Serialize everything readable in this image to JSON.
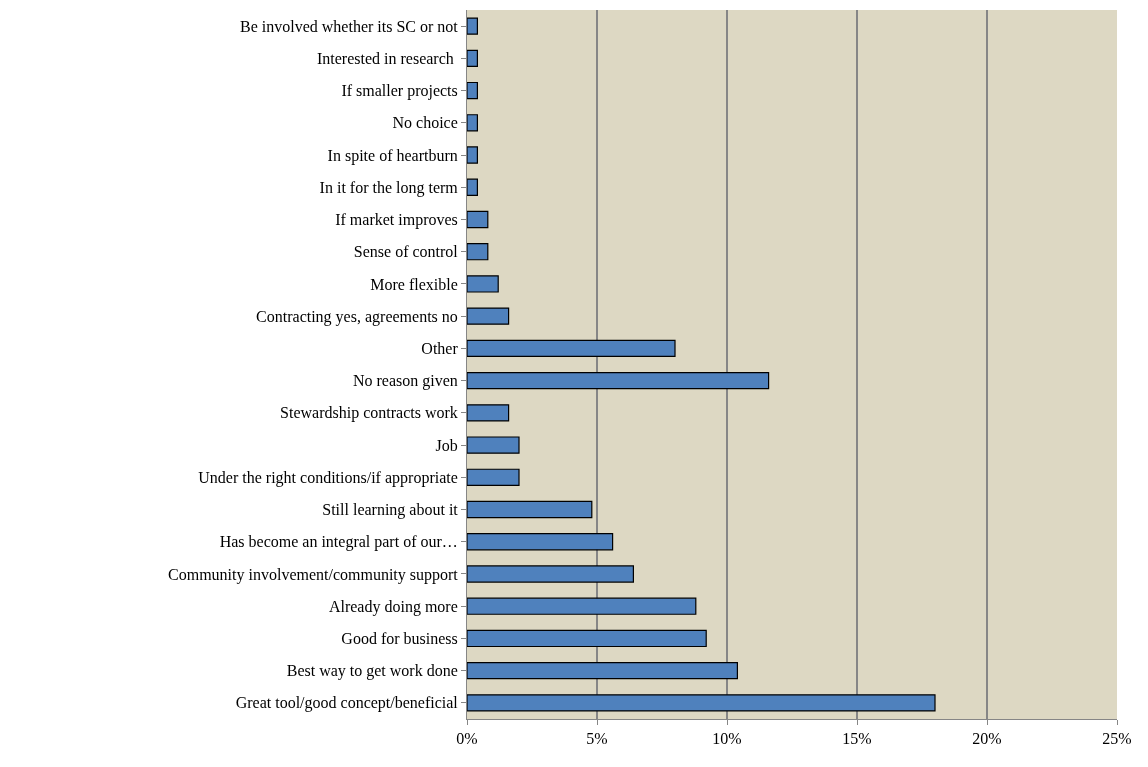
{
  "chart_data": {
    "type": "bar",
    "orientation": "horizontal",
    "categories": [
      "Be involved whether its SC or not",
      "Interested in research ",
      "If smaller projects",
      "No choice",
      "In spite of heartburn",
      "In it for the long term",
      "If market improves",
      "Sense of control",
      "More flexible",
      "Contracting yes, agreements no",
      "Other",
      "No reason given",
      "Stewardship contracts work",
      "Job",
      "Under the right conditions/if appropriate",
      "Still learning about it",
      "Has become an integral part of our…",
      "Community involvement/community support",
      "Already doing more",
      "Good for business",
      "Best way to get work done",
      "Great tool/good concept/beneficial"
    ],
    "values": [
      0.4,
      0.4,
      0.4,
      0.4,
      0.4,
      0.4,
      0.8,
      0.8,
      1.2,
      1.6,
      8.0,
      11.6,
      1.6,
      2.0,
      2.0,
      4.8,
      5.6,
      6.4,
      8.8,
      9.2,
      10.4,
      18.0
    ],
    "color": "#4f81bd",
    "xlim": [
      0,
      25
    ],
    "xticks": [
      {
        "value": 0,
        "label": "0%"
      },
      {
        "value": 5,
        "label": "5%"
      },
      {
        "value": 10,
        "label": "10%"
      },
      {
        "value": 15,
        "label": "15%"
      },
      {
        "value": 20,
        "label": "20%"
      },
      {
        "value": 25,
        "label": "25%"
      }
    ],
    "grid": "x"
  }
}
